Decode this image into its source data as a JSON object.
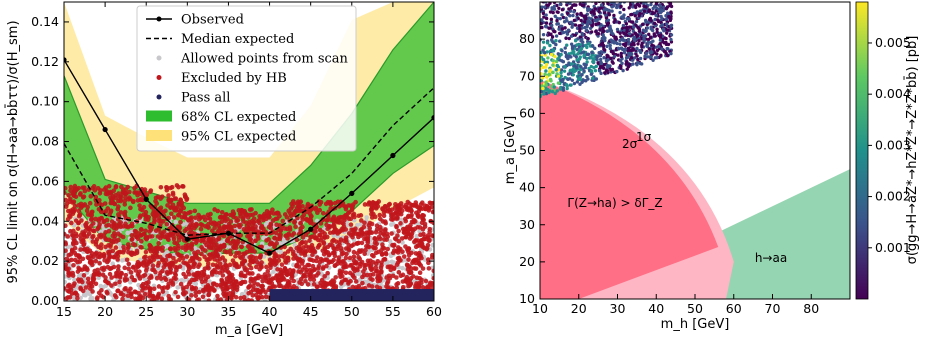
{
  "chart_data": [
    {
      "type": "line",
      "xlabel": "m_a [GeV]",
      "ylabel": "95% CL limit on σ(H→aa→bb̄ττ)/σ(H_sm)",
      "xlim": [
        15,
        60
      ],
      "ylim": [
        0,
        0.15
      ],
      "xticks": [
        15,
        20,
        25,
        30,
        35,
        40,
        45,
        50,
        55,
        60
      ],
      "yticks": [
        0.0,
        0.02,
        0.04,
        0.06,
        0.08,
        0.1,
        0.12,
        0.14
      ],
      "legend_position": "top-center",
      "legend": [
        "Observed",
        "Median expected",
        "Allowed points from scan",
        "Excluded by HB",
        "Pass all",
        "68% CL expected",
        "95% CL expected"
      ],
      "series": [
        {
          "name": "Observed",
          "x": [
            15,
            20,
            25,
            30,
            35,
            40,
            45,
            50,
            55,
            60
          ],
          "values": [
            0.121,
            0.086,
            0.051,
            0.031,
            0.034,
            0.024,
            0.036,
            0.054,
            0.073,
            0.092
          ]
        },
        {
          "name": "Median expected",
          "x": [
            15,
            20,
            25,
            30,
            35,
            40,
            45,
            50,
            55,
            60
          ],
          "values": [
            0.079,
            0.043,
            0.039,
            0.033,
            0.034,
            0.034,
            0.047,
            0.064,
            0.088,
            0.107
          ]
        },
        {
          "name": "68% CL expected",
          "x": [
            15,
            20,
            25,
            30,
            35,
            40,
            45,
            50,
            55,
            60
          ],
          "low": [
            0.055,
            0.03,
            0.026,
            0.023,
            0.024,
            0.024,
            0.033,
            0.045,
            0.064,
            0.078
          ],
          "high": [
            0.113,
            0.061,
            0.055,
            0.049,
            0.049,
            0.049,
            0.068,
            0.094,
            0.126,
            0.15
          ]
        },
        {
          "name": "95% CL expected",
          "x": [
            15,
            20,
            25,
            30,
            35,
            40,
            45,
            50,
            55,
            60
          ],
          "low": [
            0.04,
            0.022,
            0.019,
            0.017,
            0.017,
            0.017,
            0.024,
            0.032,
            0.046,
            0.057
          ],
          "high": [
            0.15,
            0.093,
            0.082,
            0.072,
            0.072,
            0.072,
            0.098,
            0.141,
            0.15,
            0.15
          ]
        }
      ],
      "colors": {
        "observed": "#000000",
        "band68": "#2ebd2e",
        "band95": "#ffe17a",
        "allowed": "#c8c8cc",
        "excluded": "#c0161c",
        "pass": "#23235e"
      }
    },
    {
      "type": "scatter",
      "xlabel": "m_h [GeV]",
      "ylabel": "m_a [GeV]",
      "xlim": [
        10,
        90
      ],
      "ylim": [
        10,
        90
      ],
      "xticks": [
        10,
        20,
        30,
        40,
        50,
        60,
        70,
        80
      ],
      "yticks": [
        10,
        20,
        30,
        40,
        50,
        60,
        70,
        80
      ],
      "colorbar": {
        "label": "σ(gg→H→aZ*→hZ*Z*→Z*Z*bb̄) [pb]",
        "ticks": [
          0.001,
          0.002,
          0.003,
          0.004,
          0.005
        ],
        "colormap": "viridis"
      },
      "annotations": [
        "Γ(Z→ha) > δΓ_Z",
        "1σ",
        "2σ",
        "h→aa"
      ],
      "region_colors": {
        "width": "#ff6f86",
        "band": "#ffb6c4",
        "haa": "#96d5b2"
      }
    }
  ]
}
